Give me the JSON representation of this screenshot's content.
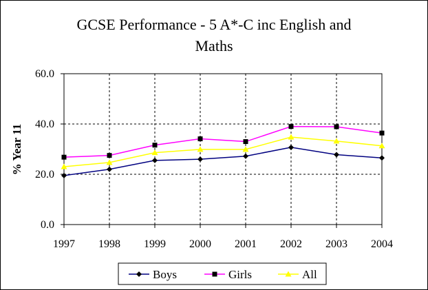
{
  "chart_data": {
    "type": "line",
    "title_line1": "GCSE Performance - 5 A*-C inc English and",
    "title_line2": "Maths",
    "xlabel": "",
    "ylabel": "% Year 11",
    "categories": [
      "1997",
      "1998",
      "1999",
      "2000",
      "2001",
      "2002",
      "2003",
      "2004"
    ],
    "ylim": [
      0,
      60
    ],
    "yticks": [
      "0.0",
      "20.0",
      "40.0",
      "60.0"
    ],
    "grid": true,
    "legend_position": "bottom",
    "series": [
      {
        "name": "Boys",
        "color": "#000080",
        "marker": "diamond",
        "values": [
          19.5,
          22.0,
          25.5,
          26.0,
          27.2,
          30.7,
          27.8,
          26.5
        ]
      },
      {
        "name": "Girls",
        "color": "#ff00ff",
        "marker": "square",
        "values": [
          26.8,
          27.5,
          31.6,
          34.1,
          33.0,
          39.0,
          38.9,
          36.4
        ]
      },
      {
        "name": "All",
        "color": "#ffff00",
        "marker": "triangle",
        "values": [
          23.0,
          24.7,
          28.6,
          29.9,
          29.9,
          34.8,
          33.2,
          31.3
        ]
      }
    ]
  }
}
